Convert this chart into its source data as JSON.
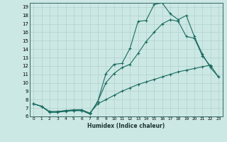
{
  "xlabel": "Humidex (Indice chaleur)",
  "bg_color": "#cce8e4",
  "grid_color": "#b0d0cc",
  "line_color": "#1a6b60",
  "xlim": [
    -0.5,
    23.5
  ],
  "ylim": [
    6,
    19.5
  ],
  "xticks": [
    0,
    1,
    2,
    3,
    4,
    5,
    6,
    7,
    8,
    9,
    10,
    11,
    12,
    13,
    14,
    15,
    16,
    17,
    18,
    19,
    20,
    21,
    22,
    23
  ],
  "yticks": [
    6,
    7,
    8,
    9,
    10,
    11,
    12,
    13,
    14,
    15,
    16,
    17,
    18,
    19
  ],
  "line1_x": [
    0,
    1,
    2,
    3,
    4,
    5,
    6,
    7,
    8,
    9,
    10,
    11,
    12,
    13,
    14,
    15,
    16,
    17,
    18,
    19,
    20,
    21,
    22,
    23
  ],
  "line1_y": [
    7.5,
    7.2,
    6.5,
    6.5,
    6.6,
    6.7,
    6.7,
    6.3,
    7.8,
    11.1,
    12.2,
    12.3,
    14.1,
    17.3,
    17.4,
    19.3,
    19.5,
    18.2,
    17.5,
    18.0,
    15.5,
    13.4,
    11.8,
    10.7
  ],
  "line2_x": [
    0,
    1,
    2,
    3,
    4,
    5,
    6,
    7,
    8,
    9,
    10,
    11,
    12,
    13,
    14,
    15,
    16,
    17,
    18,
    19,
    20,
    21,
    22
  ],
  "line2_y": [
    7.5,
    7.2,
    6.5,
    6.5,
    6.7,
    6.7,
    6.7,
    6.3,
    7.8,
    10.0,
    11.1,
    11.8,
    12.2,
    13.5,
    14.9,
    16.0,
    17.0,
    17.5,
    17.3,
    15.5,
    15.3,
    13.2,
    12.0
  ],
  "line3_x": [
    0,
    1,
    2,
    3,
    4,
    5,
    6,
    7,
    8,
    9,
    10,
    11,
    12,
    13,
    14,
    15,
    16,
    17,
    18,
    19,
    20,
    21,
    22,
    23
  ],
  "line3_y": [
    7.5,
    7.2,
    6.6,
    6.6,
    6.7,
    6.8,
    6.8,
    6.4,
    7.5,
    8.0,
    8.5,
    9.0,
    9.4,
    9.8,
    10.1,
    10.4,
    10.7,
    11.0,
    11.3,
    11.5,
    11.7,
    11.9,
    12.1,
    10.7
  ]
}
